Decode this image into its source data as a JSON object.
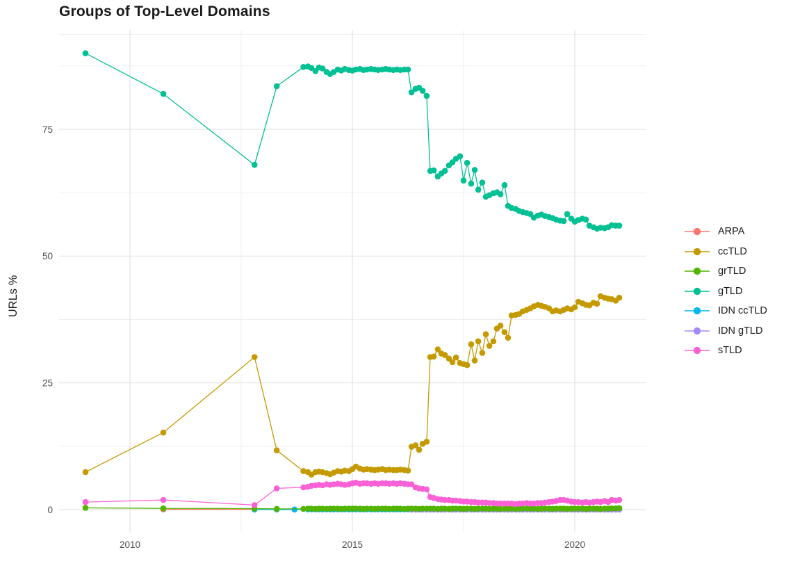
{
  "chart_data": {
    "type": "line",
    "title": "Groups of Top-Level Domains",
    "xlabel": "",
    "ylabel": "URLs %",
    "legend_position": "right",
    "grid": "on",
    "xlim": [
      2008.4,
      2021.65
    ],
    "ylim": [
      -4.5,
      94.6
    ],
    "x_ticks": [
      2010,
      2015,
      2020
    ],
    "x_tick_labels": [
      "2010",
      "2015",
      "2020"
    ],
    "x_minor_ticks": [
      2012.5,
      2017.5
    ],
    "y_ticks": [
      0,
      25,
      50,
      75
    ],
    "y_tick_labels": [
      "0",
      "25",
      "50",
      "75"
    ],
    "y_minor_ticks": [
      12.5,
      37.5,
      62.5,
      87.5,
      93.7
    ],
    "style": {
      "background": "#ffffff",
      "grid_major": "#e3e3e3",
      "grid_minor": "#efefef",
      "tick_label_color": "#4d4d4d",
      "text_color": "#1a1a1a"
    },
    "x_dense": [
      2014.0,
      2014.08,
      2014.17,
      2014.25,
      2014.33,
      2014.42,
      2014.5,
      2014.58,
      2014.67,
      2014.75,
      2014.83,
      2014.92,
      2015.0,
      2015.08,
      2015.17,
      2015.25,
      2015.33,
      2015.42,
      2015.5,
      2015.58,
      2015.67,
      2015.75,
      2015.83,
      2015.92,
      2016.0,
      2016.08,
      2016.17,
      2016.25,
      2016.33,
      2016.42,
      2016.5,
      2016.58,
      2016.67,
      2016.75,
      2016.83,
      2016.92,
      2017.0,
      2017.08,
      2017.17,
      2017.25,
      2017.33,
      2017.42,
      2017.5,
      2017.58,
      2017.67,
      2017.75,
      2017.83,
      2017.92,
      2018.0,
      2018.08,
      2018.17,
      2018.25,
      2018.33,
      2018.42,
      2018.5,
      2018.58,
      2018.67,
      2018.75,
      2018.83,
      2018.92,
      2019.0,
      2019.08,
      2019.17,
      2019.25,
      2019.33,
      2019.42,
      2019.5,
      2019.58,
      2019.67,
      2019.75,
      2019.83,
      2019.92,
      2020.0,
      2020.08,
      2020.17,
      2020.25,
      2020.33,
      2020.42,
      2020.5,
      2020.58,
      2020.67,
      2020.75,
      2020.83,
      2020.92,
      2021.0
    ],
    "series": [
      {
        "name": "ARPA",
        "color": "#F8766D",
        "z": 1,
        "prefix": [
          [
            2010.75,
            0.05
          ],
          [
            2012.8,
            0.05
          ]
        ],
        "y_dense": null
      },
      {
        "name": "ccTLD",
        "color": "#C49A00",
        "z": 2,
        "prefix": [
          [
            2009.0,
            7.4
          ],
          [
            2010.75,
            15.2
          ],
          [
            2012.8,
            30.1
          ],
          [
            2013.3,
            11.7
          ],
          [
            2013.9,
            7.6
          ]
        ],
        "y_dense": [
          7.4,
          6.9,
          7.4,
          7.5,
          7.4,
          7.2,
          7.0,
          7.3,
          7.6,
          7.5,
          7.7,
          7.6,
          8.0,
          8.5,
          8.1,
          7.9,
          8.0,
          7.9,
          7.8,
          7.9,
          8.0,
          7.8,
          7.9,
          7.8,
          7.8,
          7.9,
          7.8,
          7.7,
          12.4,
          12.7,
          11.8,
          13.0,
          13.4,
          30.1,
          30.2,
          31.6,
          30.8,
          30.5,
          29.8,
          29.1,
          30.0,
          28.9,
          28.7,
          28.5,
          32.6,
          29.4,
          33.2,
          30.9,
          34.6,
          32.3,
          33.2,
          35.7,
          36.3,
          35.0,
          33.9,
          38.3,
          38.4,
          38.6,
          39.1,
          39.4,
          39.7,
          40.1,
          40.4,
          40.2,
          40.0,
          39.7,
          39.1,
          39.3,
          39.1,
          39.4,
          39.7,
          39.5,
          39.9,
          41.0,
          40.7,
          40.4,
          40.3,
          40.8,
          40.6,
          42.1,
          41.8,
          41.6,
          41.5,
          41.2,
          41.8
        ]
      },
      {
        "name": "grTLD",
        "color": "#53B400",
        "z": 6,
        "prefix": [
          [
            2009.0,
            0.35
          ],
          [
            2010.75,
            0.25
          ],
          [
            2012.8,
            0.2
          ],
          [
            2013.3,
            0.15
          ],
          [
            2013.9,
            0.15
          ]
        ],
        "y_dense": [
          0.2,
          0.2,
          0.15,
          0.2,
          0.2,
          0.15,
          0.2,
          0.2,
          0.2,
          0.15,
          0.2,
          0.2,
          0.2,
          0.2,
          0.2,
          0.15,
          0.2,
          0.2,
          0.15,
          0.2,
          0.2,
          0.2,
          0.15,
          0.2,
          0.2,
          0.2,
          0.15,
          0.2,
          0.2,
          0.2,
          0.15,
          0.2,
          0.2,
          0.2,
          0.2,
          0.15,
          0.2,
          0.2,
          0.15,
          0.2,
          0.2,
          0.2,
          0.15,
          0.2,
          0.2,
          0.15,
          0.2,
          0.2,
          0.2,
          0.15,
          0.2,
          0.2,
          0.15,
          0.2,
          0.2,
          0.2,
          0.15,
          0.2,
          0.2,
          0.2,
          0.2,
          0.2,
          0.15,
          0.2,
          0.2,
          0.2,
          0.15,
          0.2,
          0.2,
          0.2,
          0.15,
          0.2,
          0.2,
          0.2,
          0.2,
          0.15,
          0.2,
          0.2,
          0.2,
          0.15,
          0.2,
          0.2,
          0.25,
          0.25,
          0.3
        ]
      },
      {
        "name": "gTLD",
        "color": "#00C094",
        "z": 3,
        "prefix": [
          [
            2009.0,
            90.0
          ],
          [
            2010.75,
            82.0
          ],
          [
            2012.8,
            68.0
          ],
          [
            2013.3,
            83.5
          ],
          [
            2013.9,
            87.3
          ]
        ],
        "y_dense": [
          87.4,
          87.1,
          86.5,
          87.2,
          87.0,
          86.3,
          85.9,
          86.3,
          86.8,
          86.6,
          86.9,
          86.7,
          86.6,
          86.8,
          86.9,
          86.7,
          86.8,
          86.9,
          86.8,
          86.7,
          86.8,
          86.9,
          86.8,
          86.7,
          86.8,
          86.7,
          86.8,
          86.8,
          82.3,
          83.0,
          83.2,
          82.6,
          81.6,
          66.8,
          66.9,
          65.7,
          66.3,
          66.8,
          67.9,
          68.5,
          69.2,
          69.7,
          64.9,
          68.4,
          64.3,
          67.0,
          63.1,
          64.5,
          61.7,
          62.0,
          62.4,
          62.6,
          62.2,
          64.0,
          59.9,
          59.5,
          59.3,
          58.9,
          58.7,
          58.5,
          58.3,
          57.6,
          58.0,
          58.2,
          57.9,
          57.7,
          57.5,
          57.2,
          57.0,
          56.9,
          58.3,
          57.4,
          56.8,
          57.1,
          57.4,
          57.2,
          56.0,
          55.7,
          55.4,
          55.6,
          55.5,
          55.7,
          56.1,
          56.0,
          56.0
        ]
      },
      {
        "name": "IDN ccTLD",
        "color": "#00B6EB",
        "z": 4,
        "prefix": [
          [
            2012.8,
            0.03
          ],
          [
            2013.3,
            0.03
          ],
          [
            2013.7,
            0.03
          ]
        ],
        "y_dense": [
          0.05,
          0.05,
          0.05,
          0.05,
          0.05,
          0.05,
          0.05,
          0.05,
          0.05,
          0.05,
          0.05,
          0.05,
          0.05,
          0.05,
          0.05,
          0.05,
          0.05,
          0.05,
          0.05,
          0.05,
          0.05,
          0.05,
          0.05,
          0.05,
          0.05,
          0.05,
          0.05,
          0.05,
          0.05,
          0.05,
          0.05,
          0.05,
          0.05,
          0.05,
          0.05,
          0.05,
          0.05,
          0.05,
          0.05,
          0.05,
          0.05,
          0.05,
          0.05,
          0.05,
          0.05,
          0.05,
          0.05,
          0.05,
          0.05,
          0.05,
          0.05,
          0.05,
          0.05,
          0.05,
          0.05,
          0.05,
          0.05,
          0.05,
          0.05,
          0.05,
          0.05,
          0.05,
          0.05,
          0.05,
          0.05,
          0.05,
          0.05,
          0.05,
          0.05,
          0.05,
          0.05,
          0.05,
          0.05,
          0.05,
          0.05,
          0.05,
          0.05,
          0.05,
          0.05,
          0.05,
          0.05,
          0.05,
          0.05,
          0.05,
          0.05
        ]
      },
      {
        "name": "IDN gTLD",
        "color": "#A58AFF",
        "z": 5,
        "prefix": [],
        "start_index": 28,
        "y_dense": [
          0.02,
          0.02,
          0.02,
          0.02,
          0.02,
          0.02,
          0.02,
          0.02,
          0.02,
          0.02,
          0.02,
          0.02,
          0.02,
          0.02,
          0.02,
          0.02,
          0.02,
          0.02,
          0.02,
          0.02,
          0.02,
          0.02,
          0.02,
          0.02,
          0.02,
          0.02,
          0.02,
          0.02,
          0.02,
          0.02,
          0.02,
          0.02,
          0.02,
          0.02,
          0.02,
          0.02,
          0.02,
          0.02,
          0.02,
          0.02,
          0.02,
          0.02,
          0.02,
          0.02,
          0.02,
          0.02,
          0.02,
          0.02,
          0.02,
          0.02,
          0.02,
          0.02,
          0.02,
          0.02,
          0.02,
          0.02,
          0.02
        ]
      },
      {
        "name": "sTLD",
        "color": "#FB61D7",
        "z": 7,
        "prefix": [
          [
            2009.0,
            1.5
          ],
          [
            2010.75,
            1.9
          ],
          [
            2012.8,
            0.9
          ],
          [
            2013.3,
            4.2
          ],
          [
            2013.9,
            4.4
          ]
        ],
        "y_dense": [
          4.5,
          4.7,
          4.8,
          4.9,
          4.8,
          5.0,
          4.9,
          5.0,
          5.1,
          5.0,
          4.9,
          5.0,
          5.2,
          5.3,
          5.1,
          5.2,
          5.2,
          5.1,
          5.2,
          5.1,
          5.2,
          5.2,
          5.1,
          5.2,
          5.1,
          5.2,
          5.1,
          5.0,
          5.0,
          4.4,
          4.2,
          4.1,
          4.0,
          2.5,
          2.3,
          2.1,
          2.0,
          1.9,
          1.9,
          1.8,
          1.8,
          1.7,
          1.6,
          1.6,
          1.5,
          1.5,
          1.4,
          1.4,
          1.4,
          1.3,
          1.3,
          1.2,
          1.2,
          1.2,
          1.2,
          1.2,
          1.1,
          1.2,
          1.2,
          1.3,
          1.2,
          1.2,
          1.3,
          1.3,
          1.4,
          1.5,
          1.6,
          1.7,
          1.9,
          1.9,
          1.8,
          1.6,
          1.5,
          1.5,
          1.4,
          1.5,
          1.4,
          1.5,
          1.6,
          1.5,
          1.7,
          1.5,
          1.9,
          1.8,
          1.9
        ]
      }
    ]
  }
}
